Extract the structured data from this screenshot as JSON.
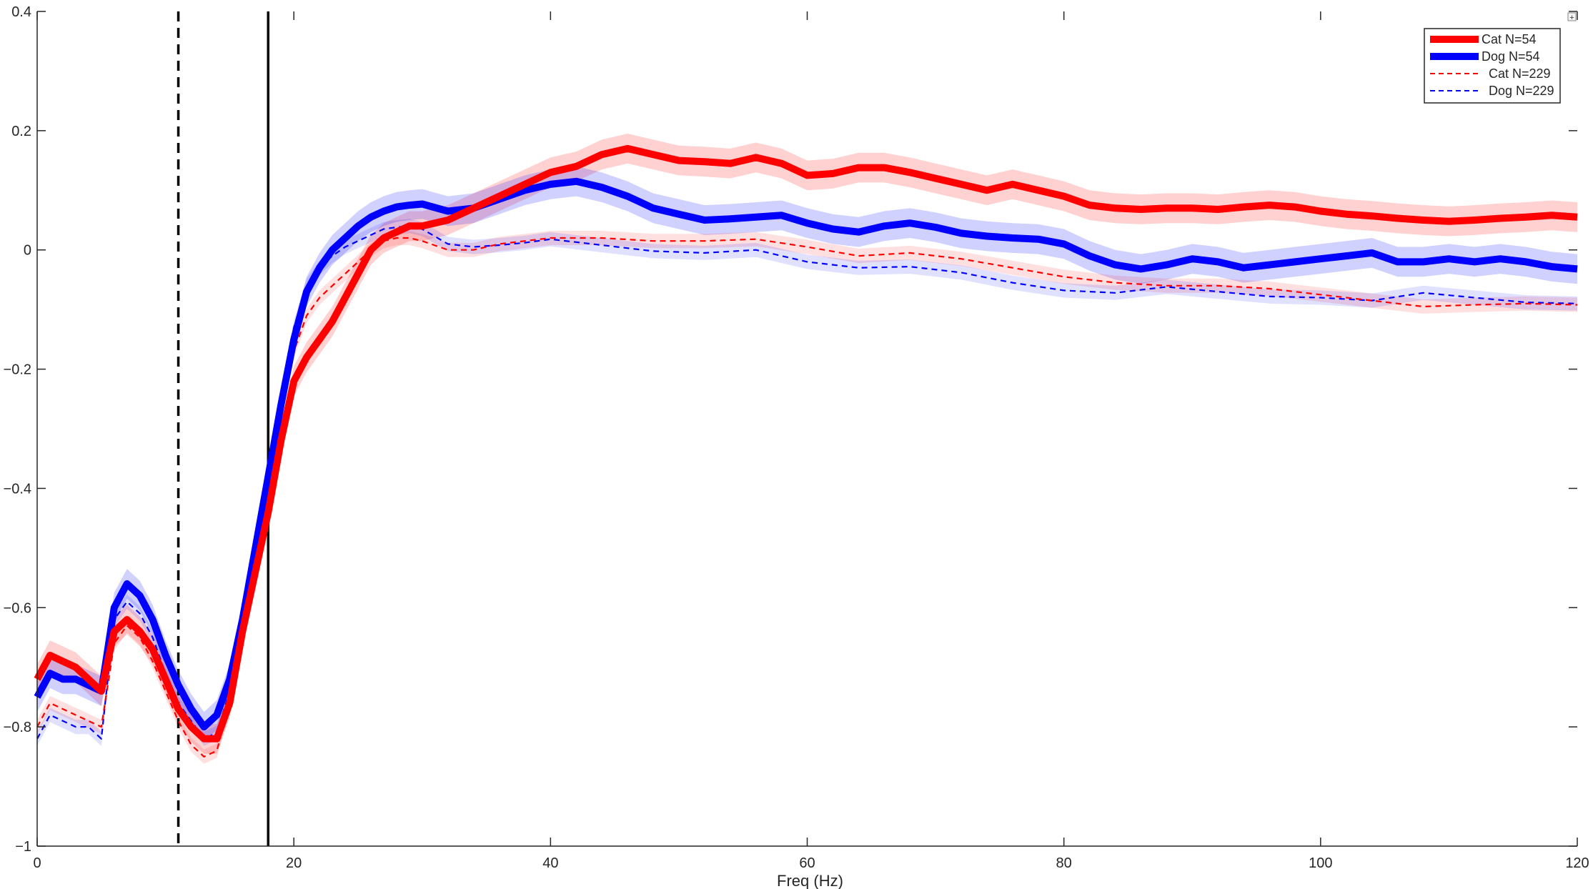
{
  "chart_data": {
    "type": "line",
    "title": "",
    "xlabel": "Freq (Hz)",
    "ylabel": "",
    "xlim": [
      0,
      120
    ],
    "ylim": [
      -1,
      0.4
    ],
    "xticks": [
      0,
      20,
      40,
      60,
      80,
      100,
      120
    ],
    "xtick_labels": [
      "0",
      "20",
      "40",
      "60",
      "80",
      "100",
      "120"
    ],
    "yticks": [
      -1,
      -0.8,
      -0.6,
      -0.4,
      -0.2,
      0,
      0.2,
      0.4
    ],
    "ytick_labels": [
      "−1",
      "−0.8",
      "−0.6",
      "−0.4",
      "−0.2",
      "0",
      "0.2",
      "0.4"
    ],
    "grid": false,
    "legend_position": "top-right",
    "vertical_lines": [
      {
        "x": 11,
        "style": "dashed",
        "color": "#000000"
      },
      {
        "x": 18,
        "style": "solid",
        "color": "#000000"
      }
    ],
    "series": [
      {
        "name": "Cat N=54",
        "color": "#ff0000",
        "style": "solid",
        "band": 0.025,
        "x": [
          0,
          1,
          2,
          3,
          4,
          5,
          6,
          7,
          8,
          9,
          10,
          11,
          12,
          13,
          14,
          15,
          16,
          17,
          18,
          19,
          20,
          21,
          22,
          23,
          24,
          25,
          26,
          27,
          28,
          29,
          30,
          32,
          34,
          36,
          38,
          40,
          42,
          44,
          46,
          48,
          50,
          52,
          54,
          56,
          58,
          60,
          62,
          64,
          66,
          68,
          70,
          72,
          74,
          76,
          78,
          80,
          82,
          84,
          86,
          88,
          90,
          92,
          94,
          96,
          98,
          100,
          102,
          104,
          106,
          108,
          110,
          112,
          114,
          116,
          118,
          120
        ],
        "values": [
          -0.72,
          -0.68,
          -0.69,
          -0.7,
          -0.72,
          -0.74,
          -0.64,
          -0.62,
          -0.64,
          -0.67,
          -0.72,
          -0.77,
          -0.8,
          -0.82,
          -0.82,
          -0.76,
          -0.64,
          -0.54,
          -0.44,
          -0.32,
          -0.22,
          -0.18,
          -0.15,
          -0.12,
          -0.08,
          -0.04,
          0.0,
          0.02,
          0.03,
          0.04,
          0.04,
          0.05,
          0.07,
          0.09,
          0.11,
          0.13,
          0.14,
          0.16,
          0.17,
          0.16,
          0.15,
          0.148,
          0.145,
          0.155,
          0.145,
          0.125,
          0.128,
          0.138,
          0.138,
          0.13,
          0.12,
          0.11,
          0.1,
          0.11,
          0.1,
          0.09,
          0.075,
          0.07,
          0.068,
          0.07,
          0.07,
          0.068,
          0.072,
          0.075,
          0.072,
          0.065,
          0.06,
          0.057,
          0.053,
          0.05,
          0.048,
          0.05,
          0.053,
          0.055,
          0.058,
          0.055
        ]
      },
      {
        "name": "Dog N=54",
        "color": "#0000ff",
        "style": "solid",
        "band": 0.025,
        "x": [
          0,
          1,
          2,
          3,
          4,
          5,
          6,
          7,
          8,
          9,
          10,
          11,
          12,
          13,
          14,
          15,
          16,
          17,
          18,
          19,
          20,
          21,
          22,
          23,
          24,
          25,
          26,
          27,
          28,
          29,
          30,
          32,
          34,
          36,
          38,
          40,
          42,
          44,
          46,
          48,
          50,
          52,
          54,
          56,
          58,
          60,
          62,
          64,
          66,
          68,
          70,
          72,
          74,
          76,
          78,
          80,
          82,
          84,
          86,
          88,
          90,
          92,
          94,
          96,
          98,
          100,
          102,
          104,
          106,
          108,
          110,
          112,
          114,
          116,
          118,
          120
        ],
        "values": [
          -0.75,
          -0.71,
          -0.72,
          -0.72,
          -0.73,
          -0.74,
          -0.6,
          -0.56,
          -0.58,
          -0.62,
          -0.68,
          -0.73,
          -0.77,
          -0.8,
          -0.78,
          -0.72,
          -0.62,
          -0.5,
          -0.38,
          -0.26,
          -0.15,
          -0.07,
          -0.03,
          0.0,
          0.02,
          0.04,
          0.055,
          0.065,
          0.072,
          0.075,
          0.077,
          0.065,
          0.07,
          0.085,
          0.1,
          0.11,
          0.115,
          0.105,
          0.09,
          0.07,
          0.06,
          0.05,
          0.052,
          0.055,
          0.058,
          0.045,
          0.035,
          0.03,
          0.04,
          0.045,
          0.038,
          0.028,
          0.023,
          0.02,
          0.018,
          0.01,
          -0.01,
          -0.025,
          -0.032,
          -0.025,
          -0.015,
          -0.02,
          -0.03,
          -0.025,
          -0.02,
          -0.015,
          -0.01,
          -0.005,
          -0.02,
          -0.02,
          -0.015,
          -0.02,
          -0.015,
          -0.02,
          -0.028,
          -0.032
        ]
      },
      {
        "name": "Cat N=229",
        "color": "#ff0000",
        "style": "dashed",
        "band": 0.012,
        "x": [
          0,
          1,
          2,
          3,
          4,
          5,
          6,
          7,
          8,
          9,
          10,
          11,
          12,
          13,
          14,
          15,
          16,
          17,
          18,
          19,
          20,
          21,
          22,
          23,
          24,
          25,
          26,
          27,
          28,
          29,
          30,
          32,
          34,
          36,
          38,
          40,
          44,
          48,
          52,
          56,
          60,
          64,
          68,
          72,
          76,
          80,
          84,
          88,
          92,
          96,
          100,
          104,
          108,
          112,
          116,
          120
        ],
        "values": [
          -0.8,
          -0.76,
          -0.77,
          -0.78,
          -0.79,
          -0.8,
          -0.66,
          -0.63,
          -0.65,
          -0.69,
          -0.74,
          -0.79,
          -0.83,
          -0.85,
          -0.84,
          -0.76,
          -0.64,
          -0.52,
          -0.4,
          -0.28,
          -0.17,
          -0.11,
          -0.08,
          -0.06,
          -0.04,
          -0.02,
          0.0,
          0.015,
          0.02,
          0.02,
          0.015,
          0.0,
          0.0,
          0.01,
          0.015,
          0.02,
          0.02,
          0.015,
          0.015,
          0.018,
          0.005,
          -0.01,
          -0.005,
          -0.015,
          -0.03,
          -0.045,
          -0.055,
          -0.06,
          -0.06,
          -0.065,
          -0.075,
          -0.085,
          -0.095,
          -0.092,
          -0.09,
          -0.092
        ]
      },
      {
        "name": "Dog N=229",
        "color": "#0000ff",
        "style": "dashed",
        "band": 0.012,
        "x": [
          0,
          1,
          2,
          3,
          4,
          5,
          6,
          7,
          8,
          9,
          10,
          11,
          12,
          13,
          14,
          15,
          16,
          17,
          18,
          19,
          20,
          21,
          22,
          23,
          24,
          25,
          26,
          27,
          28,
          29,
          30,
          32,
          34,
          36,
          38,
          40,
          44,
          48,
          52,
          56,
          60,
          64,
          68,
          72,
          76,
          80,
          84,
          88,
          92,
          96,
          100,
          104,
          108,
          112,
          116,
          120
        ],
        "values": [
          -0.82,
          -0.78,
          -0.79,
          -0.8,
          -0.8,
          -0.82,
          -0.62,
          -0.59,
          -0.61,
          -0.65,
          -0.71,
          -0.76,
          -0.79,
          -0.82,
          -0.81,
          -0.74,
          -0.63,
          -0.5,
          -0.38,
          -0.25,
          -0.13,
          -0.06,
          -0.03,
          -0.01,
          0.005,
          0.015,
          0.025,
          0.035,
          0.038,
          0.04,
          0.035,
          0.01,
          0.005,
          0.008,
          0.012,
          0.018,
          0.008,
          -0.002,
          -0.005,
          0.0,
          -0.02,
          -0.03,
          -0.028,
          -0.038,
          -0.055,
          -0.068,
          -0.072,
          -0.062,
          -0.07,
          -0.078,
          -0.08,
          -0.085,
          -0.072,
          -0.08,
          -0.088,
          -0.09
        ]
      }
    ]
  },
  "figure": {
    "corner_icon": "plus-icon"
  }
}
